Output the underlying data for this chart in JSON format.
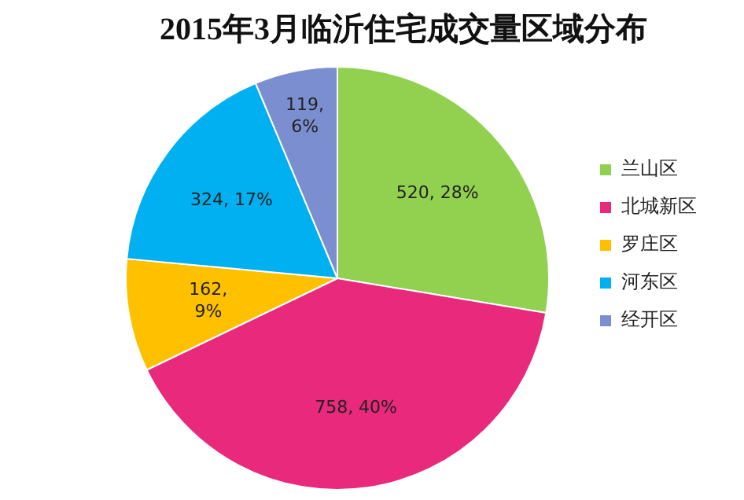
{
  "chart_data": {
    "type": "pie",
    "title": "2015年3月临沂住宅成交量区域分布",
    "categories": [
      "兰山区",
      "北城新区",
      "罗庄区",
      "河东区",
      "经开区"
    ],
    "values": [
      520,
      758,
      162,
      324,
      119
    ],
    "colors": [
      "#92d050",
      "#e9297c",
      "#ffc000",
      "#00b0f0",
      "#7b8fd0"
    ],
    "value_labels": [
      "520, 28%",
      "758, 40%",
      "162, 9%",
      "324, 17%",
      "119, 6%"
    ],
    "legend": "right"
  }
}
